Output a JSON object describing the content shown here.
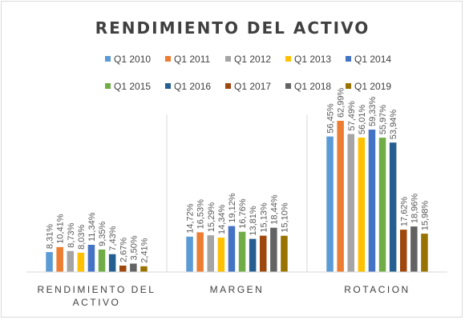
{
  "chart_data": {
    "type": "bar",
    "title": "RENDIMIENTO DEL ACTIVO",
    "categories": [
      "RENDIMIENTO DEL ACTIVO",
      "MARGEN",
      "ROTACION"
    ],
    "series": [
      {
        "name": "Q1 2010",
        "color": "#5b9bd5",
        "values": [
          8.31,
          14.72,
          56.45
        ],
        "labels": [
          "8,31%",
          "14,72%",
          "56,45%"
        ]
      },
      {
        "name": "Q1 2011",
        "color": "#ed7d31",
        "values": [
          10.41,
          16.53,
          62.99
        ],
        "labels": [
          "10,41%",
          "16,53%",
          "62,99%"
        ]
      },
      {
        "name": "Q1 2012",
        "color": "#a5a5a5",
        "values": [
          8.73,
          15.29,
          57.49
        ],
        "labels": [
          "8,73%",
          "15,29%",
          "57,49%"
        ]
      },
      {
        "name": "Q1 2013",
        "color": "#ffc000",
        "values": [
          8.03,
          14.34,
          56.01
        ],
        "labels": [
          "8,03%",
          "14,34%",
          "56,01%"
        ]
      },
      {
        "name": "Q1 2014",
        "color": "#4472c4",
        "values": [
          11.34,
          19.12,
          59.33
        ],
        "labels": [
          "11,34%",
          "19,12%",
          "59,33%"
        ]
      },
      {
        "name": "Q1 2015",
        "color": "#70ad47",
        "values": [
          9.35,
          16.76,
          55.97
        ],
        "labels": [
          "9,35%",
          "16,76%",
          "55,97%"
        ]
      },
      {
        "name": "Q1 2016",
        "color": "#255e91",
        "values": [
          7.43,
          13.81,
          53.94
        ],
        "labels": [
          "7,43%",
          "13,81%",
          "53,94%"
        ]
      },
      {
        "name": "Q1 2017",
        "color": "#9e480e",
        "values": [
          2.67,
          15.13,
          17.62
        ],
        "labels": [
          "2,67%",
          "15,13%",
          "17,62%"
        ]
      },
      {
        "name": "Q1 2018",
        "color": "#636363",
        "values": [
          3.5,
          18.44,
          18.96
        ],
        "labels": [
          "3,50%",
          "18,44%",
          "18,96%"
        ]
      },
      {
        "name": "Q1 2019",
        "color": "#997300",
        "values": [
          2.41,
          15.1,
          15.98
        ],
        "labels": [
          "2,41%",
          "15,10%",
          "15,98%"
        ]
      }
    ],
    "legend_position": "top",
    "grid": false,
    "ylim": [
      0,
      70
    ]
  }
}
